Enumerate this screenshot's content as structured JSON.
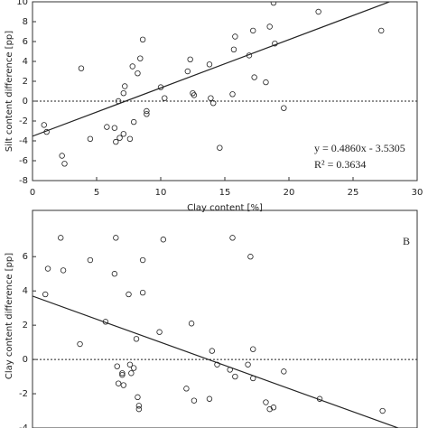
{
  "chart_data": [
    {
      "type": "scatter",
      "xlabel": "Clay content [%]",
      "ylabel": "Silt content difference [pp]",
      "xlim": [
        0,
        30
      ],
      "ylim": [
        -8,
        10
      ],
      "xticks": [
        0,
        5,
        10,
        15,
        20,
        25,
        30
      ],
      "yticks": [
        -8,
        -6,
        -4,
        -2,
        0,
        2,
        4,
        6,
        8,
        10
      ],
      "reference_line": 0,
      "fit": {
        "slope": 0.486,
        "intercept": -3.5305
      },
      "annotations": [
        "y = 0.4860x - 3.5305",
        "R² = 0.3634"
      ],
      "x": [
        0.9,
        1.1,
        2.3,
        2.5,
        3.8,
        4.5,
        5.8,
        6.4,
        6.5,
        6.7,
        6.8,
        7.1,
        7.2,
        7.1,
        7.6,
        7.8,
        7.9,
        8.2,
        8.4,
        8.6,
        8.9,
        8.9,
        10,
        10.3,
        12.1,
        12.3,
        12.5,
        12.6,
        13.8,
        13.9,
        14.1,
        14.6,
        15.6,
        15.8,
        15.7,
        16.9,
        17.2,
        17.3,
        18.2,
        18.5,
        18.8,
        18.9,
        19.6,
        22.3,
        27.2
      ],
      "y": [
        -2.4,
        -3.1,
        -5.5,
        -6.3,
        3.3,
        -3.8,
        -2.6,
        -2.7,
        -4.1,
        0,
        -3.7,
        -3.3,
        1.5,
        0.8,
        -3.8,
        3.5,
        -2.1,
        2.8,
        4.3,
        6.2,
        -1,
        -1.3,
        1.4,
        0.3,
        3,
        4.2,
        0.8,
        0.6,
        3.7,
        0.3,
        -0.2,
        -4.7,
        0.7,
        6.5,
        5.2,
        4.6,
        7.1,
        2.4,
        1.9,
        7.5,
        9.9,
        5.8,
        -0.7,
        9,
        7.1
      ]
    },
    {
      "type": "scatter",
      "ylabel": "Clay content difference [pp]",
      "panel_label": "B",
      "xlim": [
        0,
        30
      ],
      "ylim": [
        -4,
        8.7
      ],
      "yticks": [
        -4,
        -2,
        0,
        2,
        4,
        6
      ],
      "reference_line": 0,
      "fit": {
        "slope": -0.27,
        "intercept": 3.7
      },
      "x": [
        1,
        1.2,
        2.2,
        2.4,
        3.7,
        4.5,
        5.7,
        6.4,
        6.5,
        6.6,
        6.7,
        7,
        7,
        7.1,
        7.5,
        7.6,
        7.7,
        7.9,
        8.1,
        8.2,
        8.3,
        8.3,
        8.6,
        8.6,
        9.9,
        10.2,
        12.4,
        12,
        12.6,
        13.8,
        14,
        14.4,
        15.4,
        15.6,
        15.8,
        16.8,
        17,
        17.2,
        17.2,
        18.2,
        18.5,
        18.8,
        19.6,
        22.4,
        27.3
      ],
      "y": [
        3.8,
        5.3,
        7.1,
        5.2,
        0.9,
        5.8,
        2.2,
        5,
        7.1,
        -0.4,
        -1.4,
        -0.8,
        -0.9,
        -1.5,
        3.8,
        -0.3,
        -0.8,
        -0.5,
        1.2,
        -2.2,
        -2.7,
        -2.9,
        5.8,
        3.9,
        1.6,
        7,
        2.1,
        -1.7,
        -2.4,
        -2.3,
        0.5,
        -0.3,
        -0.6,
        7.1,
        -1,
        -0.3,
        6,
        0.6,
        -1.1,
        -2.5,
        -2.9,
        -2.8,
        -0.7,
        -2.3,
        -3
      ]
    }
  ]
}
